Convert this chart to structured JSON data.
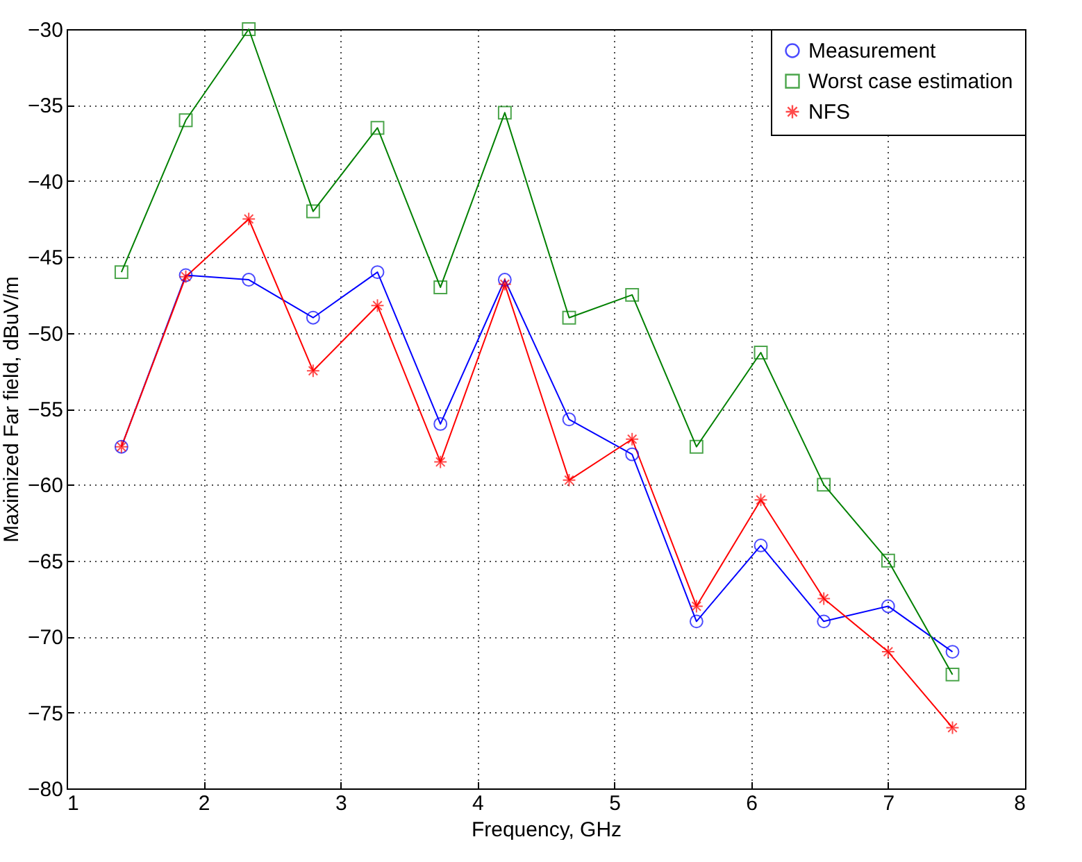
{
  "chart_data": {
    "type": "line",
    "xlabel": "Frequency, GHz",
    "ylabel": "Maximized Far field, dBuV/m",
    "x": [
      1.4,
      1.87,
      2.33,
      2.8,
      3.27,
      3.73,
      4.2,
      4.67,
      5.13,
      5.6,
      6.07,
      6.53,
      7.0,
      7.47
    ],
    "series": [
      {
        "name": "Measurement",
        "color": "#0000ff",
        "marker": "circle",
        "values": [
          -57.5,
          -46.2,
          -46.5,
          -49,
          -46,
          -56,
          -46.5,
          -55.7,
          -58,
          -69,
          -64,
          -69,
          -68,
          -71
        ]
      },
      {
        "name": "Worst case estimation",
        "color": "#008000",
        "marker": "square",
        "values": [
          -46,
          -36,
          -30,
          -42,
          -36.5,
          -47,
          -35.5,
          -49,
          -47.5,
          -57.5,
          -51.3,
          -60,
          -65,
          -72.5
        ]
      },
      {
        "name": "NFS",
        "color": "#ff0000",
        "marker": "cross",
        "values": [
          -57.5,
          -46.3,
          -42.5,
          -52.5,
          -48.2,
          -58.5,
          -46.8,
          -59.7,
          -57,
          -68,
          -61,
          -67.5,
          -71,
          -76
        ]
      }
    ],
    "xlim": [
      1,
      8
    ],
    "xticks": [
      1,
      2,
      3,
      4,
      5,
      6,
      7,
      8
    ],
    "ylim": [
      -80,
      -30
    ],
    "yticks": [
      -80,
      -75,
      -70,
      -65,
      -60,
      -55,
      -50,
      -45,
      -40,
      -35,
      -30
    ],
    "grid": true,
    "legend": "top right",
    "line_style": "solid"
  }
}
